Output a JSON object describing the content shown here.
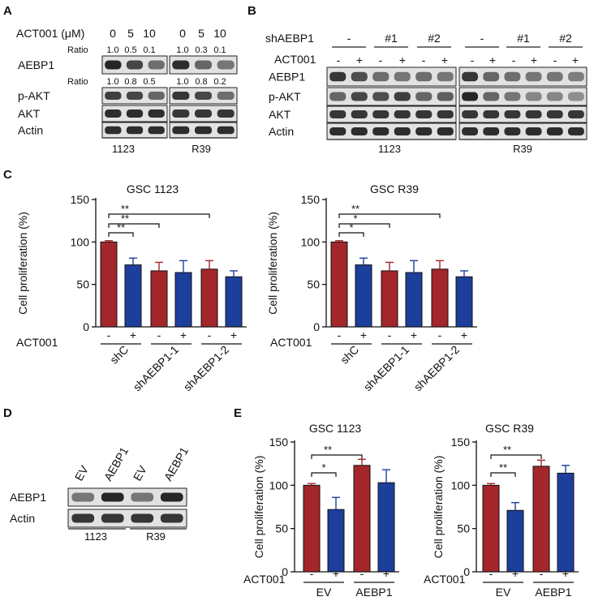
{
  "panels": {
    "A": "A",
    "B": "B",
    "C": "C",
    "D": "D",
    "E": "E"
  },
  "colors": {
    "red": "#a3262a",
    "blue": "#1d3f9c",
    "band": "#1a1a1a"
  },
  "panelA": {
    "treatment_label": "ACT001 (μM)",
    "doses": [
      "0",
      "5",
      "10",
      "0",
      "5",
      "10"
    ],
    "ratio_label": "Ratio",
    "ratio_top": [
      "1.0",
      "0.5",
      "0.1",
      "1.0",
      "0.3",
      "0.1"
    ],
    "ratio_mid": [
      "1.0",
      "0.8",
      "0.5",
      "1.0",
      "0.8",
      "0.2"
    ],
    "rows": [
      "AEBP1",
      "p-AKT",
      "AKT",
      "Actin"
    ],
    "groups": [
      "1123",
      "R39"
    ]
  },
  "panelB": {
    "sh_label": "shAEBP1",
    "act_label": "ACT001",
    "sh_groups": [
      "-",
      "#1",
      "#2",
      "-",
      "#1",
      "#2"
    ],
    "act_signs": [
      "-",
      "+",
      "-",
      "+",
      "-",
      "+",
      "-",
      "+",
      "-",
      "+",
      "-",
      "+"
    ],
    "rows": [
      "AEBP1",
      "p-AKT",
      "AKT",
      "Actin"
    ],
    "groups": [
      "1123",
      "R39"
    ]
  },
  "panelD": {
    "lanes": [
      "EV",
      "AEBP1",
      "EV",
      "AEBP1"
    ],
    "rows": [
      "AEBP1",
      "Actin"
    ],
    "groups": [
      "1123",
      "R39"
    ]
  },
  "chart_data": [
    {
      "panel": "C",
      "type": "bar",
      "title": "GSC 1123",
      "ylabel": "Cell proliferation  (%)",
      "ylim": [
        0,
        150
      ],
      "yticks": [
        "0",
        "50",
        "100",
        "150"
      ],
      "treatment_label": "ACT001",
      "signs": [
        "-",
        "+",
        "-",
        "+",
        "-",
        "+"
      ],
      "groups": [
        "shC",
        "shAEBP1-1",
        "shAEBP1-2"
      ],
      "values": [
        100,
        73,
        66,
        64,
        68,
        59
      ],
      "errors": [
        1.5,
        8,
        10,
        14,
        10,
        7
      ],
      "significance": [
        {
          "from": 0,
          "to": 1,
          "label": "**"
        },
        {
          "from": 0,
          "to": 2,
          "label": "**"
        },
        {
          "from": 0,
          "to": 4,
          "label": "**"
        }
      ]
    },
    {
      "panel": "C",
      "type": "bar",
      "title": "GSC R39",
      "ylabel": "Cell proliferation  (%)",
      "ylim": [
        0,
        150
      ],
      "yticks": [
        "0",
        "50",
        "100",
        "150"
      ],
      "treatment_label": "ACT001",
      "signs": [
        "-",
        "+",
        "-",
        "+",
        "-",
        "+"
      ],
      "groups": [
        "shC",
        "shAEBP1-1",
        "shAEBP1-2"
      ],
      "values": [
        100,
        73,
        66,
        64,
        68,
        59
      ],
      "errors": [
        1.5,
        8,
        10,
        14,
        10,
        7
      ],
      "significance": [
        {
          "from": 0,
          "to": 1,
          "label": "*"
        },
        {
          "from": 0,
          "to": 2,
          "label": "*"
        },
        {
          "from": 0,
          "to": 4,
          "label": "**"
        }
      ]
    },
    {
      "panel": "E",
      "type": "bar",
      "title": "GSC 1123",
      "ylabel": "Cell proliferation  (%)",
      "ylim": [
        0,
        150
      ],
      "yticks": [
        "0",
        "50",
        "100",
        "150"
      ],
      "treatment_label": "ACT001",
      "signs": [
        "-",
        "+",
        "-",
        "+"
      ],
      "groups": [
        "EV",
        "AEBP1"
      ],
      "values": [
        100,
        72,
        123,
        103
      ],
      "errors": [
        2,
        14,
        7,
        15
      ],
      "significance": [
        {
          "from": 0,
          "to": 1,
          "label": "*"
        },
        {
          "from": 0,
          "to": 2,
          "label": "**"
        }
      ]
    },
    {
      "panel": "E",
      "type": "bar",
      "title": "GSC R39",
      "ylabel": "Cell proliferation  (%)",
      "ylim": [
        0,
        150
      ],
      "yticks": [
        "0",
        "50",
        "100",
        "150"
      ],
      "treatment_label": "ACT001",
      "signs": [
        "-",
        "+",
        "-",
        "+"
      ],
      "groups": [
        "EV",
        "AEBP1"
      ],
      "values": [
        100,
        71,
        122,
        114
      ],
      "errors": [
        2,
        9,
        7,
        9
      ],
      "significance": [
        {
          "from": 0,
          "to": 1,
          "label": "**"
        },
        {
          "from": 0,
          "to": 2,
          "label": "**"
        }
      ]
    }
  ]
}
